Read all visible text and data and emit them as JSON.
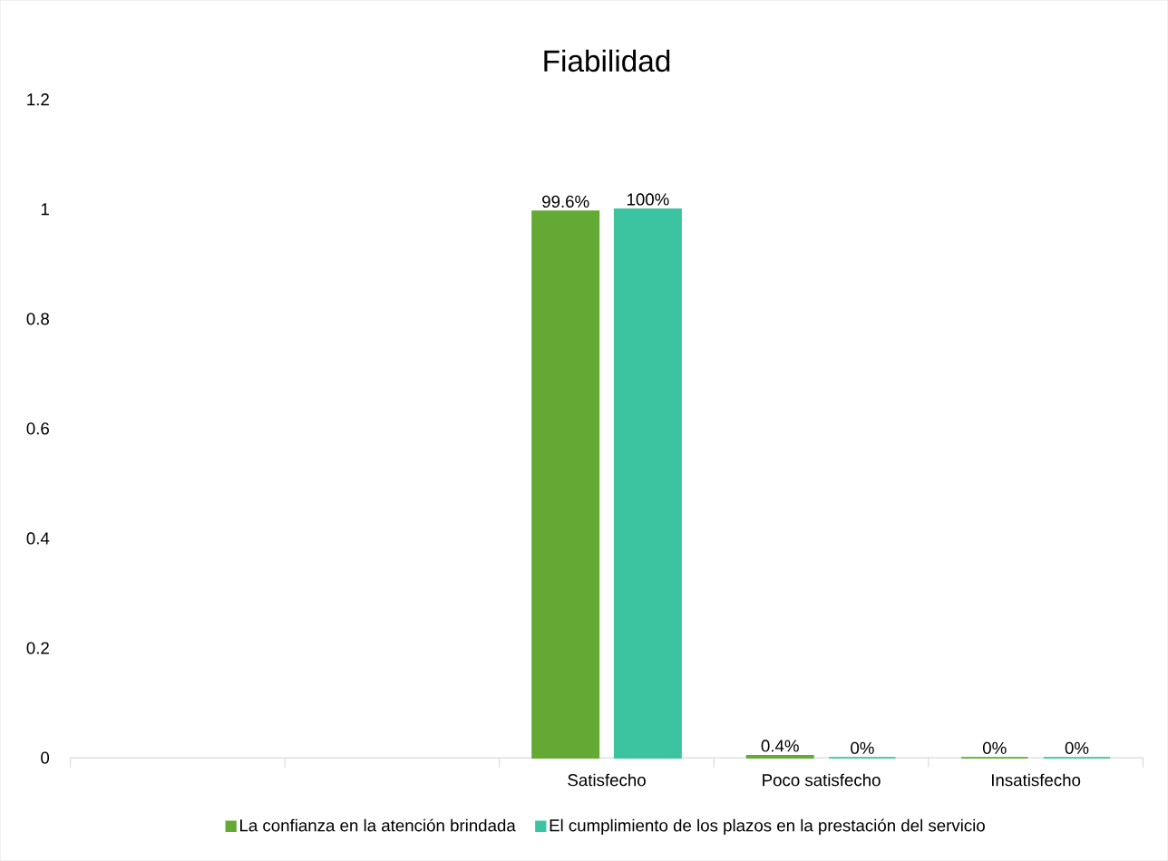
{
  "chart_data": {
    "type": "bar",
    "title": "Fiabilidad",
    "categories": [
      null,
      null,
      "Satisfecho",
      "Poco satisfecho",
      "Insatisfecho"
    ],
    "series": [
      {
        "name": "La confianza en la atención brindada",
        "color": "#64a934",
        "values": [
          null,
          null,
          0.996,
          0.004,
          0
        ],
        "value_labels": [
          null,
          null,
          "99.6%",
          "0.4%",
          "0%"
        ]
      },
      {
        "name": "El cumplimiento de los plazos en la prestación del servicio",
        "color": "#3cc4a0",
        "values": [
          null,
          null,
          1,
          0,
          0
        ],
        "value_labels": [
          null,
          null,
          "100%",
          "0%",
          "0%"
        ]
      }
    ],
    "ylim": [
      0,
      1.2
    ],
    "yticks": [
      0,
      0.2,
      0.4,
      0.6,
      0.8,
      1,
      1.2
    ],
    "legend": "bottom"
  }
}
